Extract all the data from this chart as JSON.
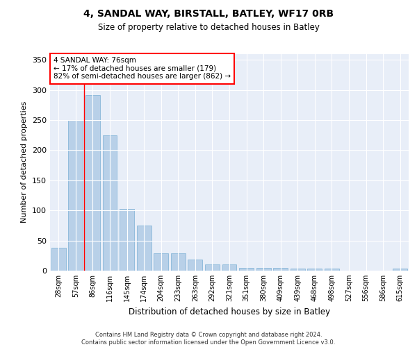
{
  "title1": "4, SANDAL WAY, BIRSTALL, BATLEY, WF17 0RB",
  "title2": "Size of property relative to detached houses in Batley",
  "xlabel": "Distribution of detached houses by size in Batley",
  "ylabel": "Number of detached properties",
  "categories": [
    "28sqm",
    "57sqm",
    "86sqm",
    "116sqm",
    "145sqm",
    "174sqm",
    "204sqm",
    "233sqm",
    "263sqm",
    "292sqm",
    "321sqm",
    "351sqm",
    "380sqm",
    "409sqm",
    "439sqm",
    "468sqm",
    "498sqm",
    "527sqm",
    "556sqm",
    "586sqm",
    "615sqm"
  ],
  "values": [
    38,
    250,
    292,
    225,
    103,
    75,
    29,
    29,
    18,
    10,
    10,
    5,
    5,
    5,
    3,
    3,
    3,
    0,
    0,
    0,
    3
  ],
  "bar_color": "#b8d0e8",
  "bar_edge_color": "#7aafd4",
  "annotation_line1": "4 SANDAL WAY: 76sqm",
  "annotation_line2": "← 17% of detached houses are smaller (179)",
  "annotation_line3": "82% of semi-detached houses are larger (862) →",
  "red_line_x": 1.5,
  "ylim": [
    0,
    360
  ],
  "yticks": [
    0,
    50,
    100,
    150,
    200,
    250,
    300,
    350
  ],
  "background_color": "#e8eef8",
  "grid_color": "#ffffff",
  "footer_line1": "Contains HM Land Registry data © Crown copyright and database right 2024.",
  "footer_line2": "Contains public sector information licensed under the Open Government Licence v3.0."
}
